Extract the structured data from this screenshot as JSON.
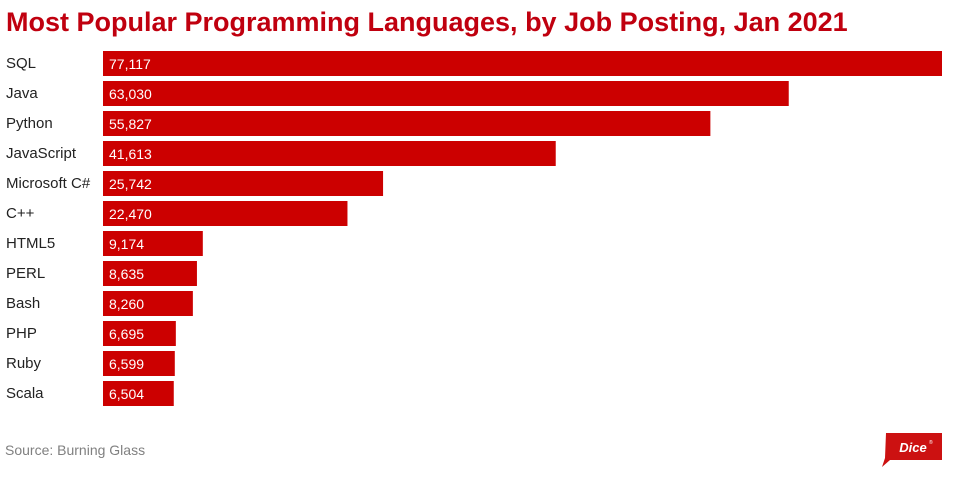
{
  "chart_data": {
    "type": "bar",
    "orientation": "horizontal",
    "title": "Most Popular Programming Languages, by Job Posting, Jan 2021",
    "categories": [
      "SQL",
      "Java",
      "Python",
      "JavaScript",
      "Microsoft C#",
      "C++",
      "HTML5",
      "PERL",
      "Bash",
      "PHP",
      "Ruby",
      "Scala"
    ],
    "values": [
      77117,
      63030,
      55827,
      41613,
      25742,
      22470,
      9174,
      8635,
      8260,
      6695,
      6599,
      6504
    ],
    "value_labels": [
      "77,117",
      "63,030",
      "55,827",
      "41,613",
      "25,742",
      "22,470",
      "9,174",
      "8,635",
      "8,260",
      "6,695",
      "6,599",
      "6,504"
    ],
    "xlim": [
      0,
      77117
    ],
    "xlabel": "",
    "ylabel": "",
    "grid": false,
    "legend": "none",
    "bar_color": "#cc0000"
  },
  "source": "Source: Burning Glass",
  "logo": {
    "text": "Dice",
    "icon": "dice-logo-icon",
    "color": "#cc1111"
  }
}
